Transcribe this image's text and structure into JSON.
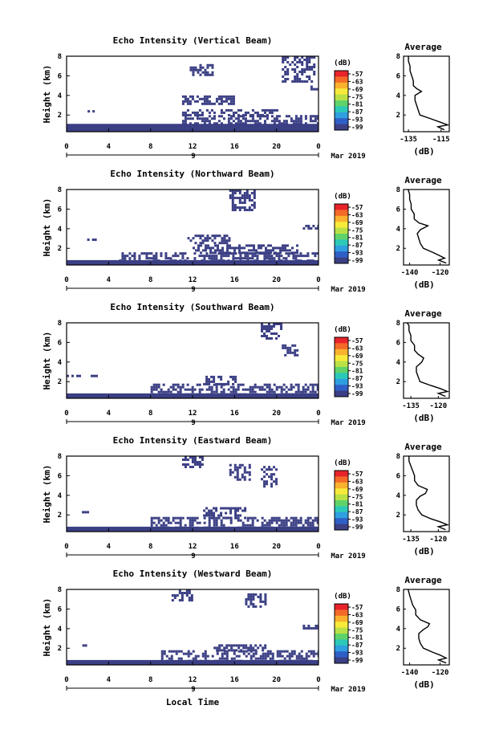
{
  "chart_data": {
    "type": "heatmap",
    "colors": {
      "echo": "#3b3f84",
      "background": "#ffffff"
    },
    "colorbar": {
      "label": "(dB)",
      "ticks": [
        "-57",
        "-63",
        "-69",
        "-75",
        "-81",
        "-87",
        "-93",
        "-99"
      ],
      "colors": [
        "#e8242a",
        "#f46a28",
        "#f9b12e",
        "#f8ea3a",
        "#b9e146",
        "#5fd36a",
        "#2cc9b9",
        "#2f9fe0",
        "#2f5fc6",
        "#3b3f84"
      ]
    },
    "shared": {
      "ylabel": "Height (km)",
      "y_ticks": [
        "2",
        "4",
        "6",
        "8"
      ],
      "x_ticks": [
        "0",
        "4",
        "8",
        "12",
        "16",
        "20",
        "0"
      ],
      "day_label": "9",
      "date_label": "Mar 2019",
      "xlabel": "Local Time",
      "avg_title": "Average",
      "avg_xlabel": "(dB)",
      "avg_y_ticks": [
        "2",
        "4",
        "6",
        "8"
      ]
    },
    "panels": [
      {
        "id": "vertical",
        "title": "Echo Intensity (Vertical Beam)",
        "avg_x_ticks": [
          "-135",
          "-115"
        ],
        "avg_xlim": [
          -138,
          -110
        ],
        "avg_profile": [
          [
            0.5,
            -113
          ],
          [
            0.8,
            -117
          ],
          [
            1.0,
            -111
          ],
          [
            1.3,
            -116
          ],
          [
            1.6,
            -121
          ],
          [
            2.0,
            -128
          ],
          [
            2.5,
            -129
          ],
          [
            3.0,
            -130
          ],
          [
            3.5,
            -131
          ],
          [
            4.0,
            -131
          ],
          [
            4.4,
            -127
          ],
          [
            4.7,
            -130
          ],
          [
            5.0,
            -132
          ],
          [
            5.5,
            -132
          ],
          [
            6.0,
            -133
          ],
          [
            6.5,
            -134
          ],
          [
            7.0,
            -134
          ],
          [
            7.5,
            -135
          ],
          [
            8.0,
            -135
          ]
        ],
        "echo_regions": [
          {
            "t": [
              0,
              24
            ],
            "h": [
              0.3,
              1.1
            ]
          },
          {
            "t": [
              11,
              24
            ],
            "h": [
              1.1,
              2.0
            ]
          },
          {
            "t": [
              11,
              20
            ],
            "h": [
              2.0,
              2.6
            ]
          },
          {
            "t": [
              11,
              16
            ],
            "h": [
              3.2,
              4.0
            ]
          },
          {
            "t": [
              11.5,
              14
            ],
            "h": [
              6.2,
              7.2
            ]
          },
          {
            "t": [
              20.5,
              23.5
            ],
            "h": [
              5.5,
              8.0
            ]
          },
          {
            "t": [
              23,
              24
            ],
            "h": [
              4.6,
              5.0
            ]
          },
          {
            "t": [
              2,
              2.5
            ],
            "h": [
              2.3,
              2.5
            ]
          }
        ]
      },
      {
        "id": "northward",
        "title": "Echo Intensity (Northward Beam)",
        "avg_x_ticks": [
          "-140",
          "-120"
        ],
        "avg_xlim": [
          -144,
          -114
        ],
        "avg_profile": [
          [
            0.5,
            -116
          ],
          [
            0.8,
            -121
          ],
          [
            1.0,
            -117
          ],
          [
            1.3,
            -121
          ],
          [
            1.6,
            -125
          ],
          [
            2.0,
            -131
          ],
          [
            2.5,
            -133
          ],
          [
            3.0,
            -134
          ],
          [
            3.5,
            -135
          ],
          [
            3.9,
            -133
          ],
          [
            4.3,
            -128
          ],
          [
            4.6,
            -134
          ],
          [
            5.0,
            -137
          ],
          [
            5.5,
            -137
          ],
          [
            6.0,
            -139
          ],
          [
            6.5,
            -139
          ],
          [
            7.0,
            -140
          ],
          [
            7.5,
            -140
          ],
          [
            8.0,
            -141
          ]
        ],
        "echo_regions": [
          {
            "t": [
              0,
              24
            ],
            "h": [
              0.3,
              0.8
            ]
          },
          {
            "t": [
              5,
              24
            ],
            "h": [
              0.8,
              1.6
            ]
          },
          {
            "t": [
              12,
              22
            ],
            "h": [
              1.6,
              2.4
            ]
          },
          {
            "t": [
              11.5,
              15.5
            ],
            "h": [
              2.5,
              3.4
            ]
          },
          {
            "t": [
              15.5,
              18
            ],
            "h": [
              6.0,
              8.0
            ]
          },
          {
            "t": [
              22.5,
              24
            ],
            "h": [
              4.0,
              4.4
            ]
          },
          {
            "t": [
              1.5,
              3
            ],
            "h": [
              2.8,
              3.0
            ]
          }
        ]
      },
      {
        "id": "southward",
        "title": "Echo Intensity (Southward Beam)",
        "avg_x_ticks": [
          "-135",
          "-120"
        ],
        "avg_xlim": [
          -139,
          -114
        ],
        "avg_profile": [
          [
            0.5,
            -116
          ],
          [
            0.8,
            -120
          ],
          [
            1.0,
            -115
          ],
          [
            1.3,
            -119
          ],
          [
            1.6,
            -124
          ],
          [
            2.0,
            -130
          ],
          [
            2.5,
            -131
          ],
          [
            3.0,
            -132
          ],
          [
            3.5,
            -132
          ],
          [
            4.0,
            -129
          ],
          [
            4.4,
            -128
          ],
          [
            4.8,
            -131
          ],
          [
            5.2,
            -133
          ],
          [
            5.7,
            -133
          ],
          [
            6.2,
            -135
          ],
          [
            6.7,
            -135
          ],
          [
            7.2,
            -136
          ],
          [
            7.7,
            -136
          ],
          [
            8.0,
            -137
          ]
        ],
        "echo_regions": [
          {
            "t": [
              0,
              24
            ],
            "h": [
              0.3,
              0.8
            ]
          },
          {
            "t": [
              8,
              24
            ],
            "h": [
              0.8,
              1.8
            ]
          },
          {
            "t": [
              13,
              16
            ],
            "h": [
              1.8,
              2.6
            ]
          },
          {
            "t": [
              18.5,
              20.5
            ],
            "h": [
              6.5,
              8.0
            ]
          },
          {
            "t": [
              20.5,
              22
            ],
            "h": [
              4.8,
              5.8
            ]
          },
          {
            "t": [
              0,
              3
            ],
            "h": [
              2.5,
              2.7
            ]
          }
        ]
      },
      {
        "id": "eastward",
        "title": "Echo Intensity (Eastward Beam)",
        "avg_x_ticks": [
          "-135",
          "-120"
        ],
        "avg_xlim": [
          -139,
          -114
        ],
        "avg_profile": [
          [
            0.5,
            -116
          ],
          [
            0.8,
            -120
          ],
          [
            1.0,
            -115
          ],
          [
            1.3,
            -119
          ],
          [
            1.6,
            -124
          ],
          [
            2.0,
            -129
          ],
          [
            2.5,
            -131
          ],
          [
            3.0,
            -132
          ],
          [
            3.5,
            -132
          ],
          [
            3.9,
            -130
          ],
          [
            4.2,
            -127
          ],
          [
            4.6,
            -126
          ],
          [
            5.0,
            -131
          ],
          [
            5.5,
            -133
          ],
          [
            6.0,
            -133
          ],
          [
            6.5,
            -134
          ],
          [
            7.0,
            -135
          ],
          [
            7.5,
            -136
          ],
          [
            8.0,
            -136
          ]
        ],
        "echo_regions": [
          {
            "t": [
              0,
              24
            ],
            "h": [
              0.3,
              0.8
            ]
          },
          {
            "t": [
              8,
              24
            ],
            "h": [
              0.8,
              1.8
            ]
          },
          {
            "t": [
              13,
              17
            ],
            "h": [
              1.8,
              2.8
            ]
          },
          {
            "t": [
              15.5,
              17.5
            ],
            "h": [
              5.5,
              7.2
            ]
          },
          {
            "t": [
              11,
              13
            ],
            "h": [
              7.0,
              8.0
            ]
          },
          {
            "t": [
              18.5,
              20
            ],
            "h": [
              5.0,
              7.0
            ]
          },
          {
            "t": [
              1,
              2
            ],
            "h": [
              2.2,
              2.4
            ]
          }
        ]
      },
      {
        "id": "westward",
        "title": "Echo Intensity (Westward Beam)",
        "avg_x_ticks": [
          "-140",
          "-120"
        ],
        "avg_xlim": [
          -144,
          -114
        ],
        "avg_profile": [
          [
            0.5,
            -116
          ],
          [
            0.8,
            -121
          ],
          [
            1.0,
            -116
          ],
          [
            1.3,
            -120
          ],
          [
            1.6,
            -125
          ],
          [
            2.0,
            -131
          ],
          [
            2.5,
            -133
          ],
          [
            3.0,
            -134
          ],
          [
            3.5,
            -134
          ],
          [
            3.9,
            -131
          ],
          [
            4.2,
            -128
          ],
          [
            4.5,
            -127
          ],
          [
            4.9,
            -133
          ],
          [
            5.4,
            -136
          ],
          [
            5.9,
            -136
          ],
          [
            6.4,
            -138
          ],
          [
            6.9,
            -139
          ],
          [
            7.4,
            -140
          ],
          [
            8.0,
            -141
          ]
        ],
        "echo_regions": [
          {
            "t": [
              0,
              24
            ],
            "h": [
              0.3,
              0.8
            ]
          },
          {
            "t": [
              9,
              24
            ],
            "h": [
              0.8,
              1.8
            ]
          },
          {
            "t": [
              14,
              19
            ],
            "h": [
              1.8,
              2.4
            ]
          },
          {
            "t": [
              10,
              12
            ],
            "h": [
              7.0,
              8.0
            ]
          },
          {
            "t": [
              17,
              19
            ],
            "h": [
              6.2,
              7.6
            ]
          },
          {
            "t": [
              22.5,
              24
            ],
            "h": [
              4.0,
              4.4
            ]
          },
          {
            "t": [
              1.5,
              2.5
            ],
            "h": [
              2.2,
              2.4
            ]
          }
        ]
      }
    ]
  }
}
